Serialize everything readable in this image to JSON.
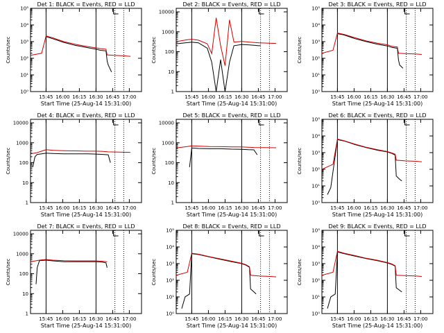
{
  "figure": {
    "colors": {
      "events": "#000000",
      "lld": "#cc0000",
      "axis": "#000000",
      "background": "#ffffff"
    },
    "xticks": [
      "15:45",
      "16:00",
      "16:15",
      "16:30",
      "16:45",
      "17:00"
    ]
  },
  "chart_data": [
    {
      "type": "line",
      "title": "Det 1: BLACK = Events, RED = LLD",
      "xlabel": "Start Time (25-Aug-14 15:31:00)",
      "ylabel": "Counts/sec",
      "yscale": "log",
      "ylim": [
        1,
        100000
      ],
      "yticks": [
        "10⁰",
        "10¹",
        "10²",
        "10³",
        "10⁴",
        "10⁵"
      ],
      "xlim_minutes_after_15_31": [
        0,
        100
      ],
      "vlines_solid_min": [
        14,
        59
      ],
      "vlines_dotted_min": [
        76,
        84
      ],
      "series": [
        {
          "name": "BLACK = Events",
          "x": [
            14,
            20,
            30,
            40,
            50,
            59,
            63,
            68,
            69,
            70,
            73
          ],
          "y": [
            2000,
            1500,
            900,
            600,
            450,
            350,
            300,
            280,
            70,
            40,
            15
          ]
        },
        {
          "name": "RED = LLD",
          "x": [
            0,
            10,
            14,
            20,
            30,
            40,
            50,
            59,
            63,
            68,
            69,
            75,
            85,
            90
          ],
          "y": [
            150,
            200,
            2200,
            1700,
            1000,
            700,
            520,
            420,
            380,
            350,
            160,
            150,
            140,
            130
          ]
        }
      ]
    },
    {
      "type": "line",
      "title": "Det 2: BLACK = Events, RED = LLD",
      "xlabel": "Start Time (25-Aug-14 15:31:00)",
      "ylabel": "Counts/sec",
      "yscale": "log",
      "ylim": [
        1,
        15000
      ],
      "yticks": [
        "1",
        "10",
        "100",
        "1000",
        "10000"
      ],
      "xlim_minutes_after_15_31": [
        0,
        100
      ],
      "vlines_solid_min": [
        14,
        59
      ],
      "vlines_dotted_min": [
        76,
        84
      ],
      "series": [
        {
          "name": "BLACK = Events",
          "x": [
            0,
            14,
            20,
            28,
            32,
            36,
            40,
            44,
            48,
            52,
            59,
            66,
            70,
            74,
            76
          ],
          "y": [
            250,
            300,
            280,
            150,
            30,
            1,
            40,
            1,
            30,
            200,
            230,
            220,
            210,
            200,
            200
          ]
        },
        {
          "name": "RED = LLD",
          "x": [
            0,
            10,
            14,
            20,
            28,
            32,
            36,
            40,
            44,
            48,
            52,
            59,
            66,
            75,
            90
          ],
          "y": [
            320,
            400,
            420,
            380,
            250,
            80,
            5000,
            200,
            20,
            4000,
            300,
            330,
            300,
            280,
            260
          ]
        }
      ]
    },
    {
      "type": "line",
      "title": "Det 3: BLACK = Events, RED = LLD",
      "xlabel": "Start Time (25-Aug-14 15:31:00)",
      "ylabel": "Counts/sec",
      "yscale": "log",
      "ylim": [
        1,
        100000
      ],
      "yticks": [
        "10⁰",
        "10¹",
        "10²",
        "10³",
        "10⁴",
        "10⁵"
      ],
      "xlim_minutes_after_15_31": [
        0,
        100
      ],
      "vlines_solid_min": [
        14,
        59
      ],
      "vlines_dotted_min": [
        76,
        84
      ],
      "series": [
        {
          "name": "BLACK = Events",
          "x": [
            14,
            20,
            30,
            40,
            50,
            59,
            63,
            68,
            69,
            70,
            73
          ],
          "y": [
            3000,
            2500,
            1500,
            1000,
            700,
            550,
            450,
            400,
            80,
            40,
            25
          ]
        },
        {
          "name": "RED = LLD",
          "x": [
            0,
            10,
            14,
            20,
            30,
            40,
            50,
            59,
            63,
            68,
            69,
            75,
            85,
            90
          ],
          "y": [
            200,
            300,
            3300,
            2700,
            1700,
            1100,
            800,
            650,
            520,
            480,
            200,
            190,
            180,
            170
          ]
        }
      ]
    },
    {
      "type": "line",
      "title": "Det 4: BLACK = Events, RED = LLD",
      "xlabel": "Start Time (25-Aug-14 15:31:00)",
      "ylabel": "Counts/sec",
      "yscale": "log",
      "ylim": [
        1,
        15000
      ],
      "yticks": [
        "1",
        "10",
        "100",
        "1000",
        "10000"
      ],
      "xlim_minutes_after_15_31": [
        0,
        100
      ],
      "vlines_solid_min": [
        14,
        59
      ],
      "vlines_dotted_min": [
        76,
        84
      ],
      "series": [
        {
          "name": "BLACK = Events",
          "x": [
            2,
            4,
            6,
            10,
            14,
            20,
            30,
            40,
            50,
            59,
            65,
            70,
            72
          ],
          "y": [
            60,
            200,
            260,
            280,
            300,
            290,
            280,
            280,
            280,
            270,
            260,
            250,
            100
          ]
        },
        {
          "name": "RED = LLD",
          "x": [
            0,
            6,
            10,
            14,
            20,
            30,
            40,
            50,
            59,
            65,
            70,
            80,
            90
          ],
          "y": [
            280,
            320,
            380,
            450,
            420,
            400,
            390,
            380,
            380,
            370,
            350,
            340,
            330
          ]
        }
      ]
    },
    {
      "type": "line",
      "title": "Det 5: BLACK = Events, RED = LLD",
      "xlabel": "Start Time (25-Aug-14 15:31:00)",
      "ylabel": "Counts/sec",
      "yscale": "log",
      "ylim": [
        1,
        15000
      ],
      "yticks": [
        "1",
        "10",
        "100",
        "1000",
        "10000"
      ],
      "xlim_minutes_after_15_31": [
        0,
        100
      ],
      "vlines_solid_min": [
        14,
        59
      ],
      "vlines_dotted_min": [
        76,
        84
      ],
      "series": [
        {
          "name": "BLACK = Events",
          "x": [
            12,
            14,
            20,
            30,
            40,
            50,
            59,
            65,
            70,
            73
          ],
          "y": [
            60,
            550,
            520,
            500,
            500,
            480,
            470,
            450,
            440,
            250
          ]
        },
        {
          "name": "RED = LLD",
          "x": [
            0,
            10,
            14,
            20,
            30,
            40,
            50,
            59,
            65,
            70,
            80,
            90
          ],
          "y": [
            550,
            650,
            700,
            680,
            650,
            640,
            620,
            620,
            600,
            580,
            570,
            560
          ]
        }
      ]
    },
    {
      "type": "line",
      "title": "Det 6: BLACK = Events, RED = LLD",
      "xlabel": "Start Time (25-Aug-14 15:31:00)",
      "ylabel": "Counts/sec",
      "yscale": "log",
      "ylim": [
        1,
        100000
      ],
      "yticks": [
        "10⁰",
        "10¹",
        "10²",
        "10³",
        "10⁴",
        "10⁵"
      ],
      "xlim_minutes_after_15_31": [
        0,
        100
      ],
      "vlines_solid_min": [
        14,
        59
      ],
      "vlines_dotted_min": [
        76,
        84
      ],
      "series": [
        {
          "name": "BLACK = Events",
          "x": [
            5,
            8,
            14,
            20,
            30,
            40,
            50,
            59,
            63,
            66,
            67,
            70,
            72
          ],
          "y": [
            3,
            8,
            6000,
            5000,
            3000,
            2000,
            1400,
            1100,
            900,
            700,
            40,
            25,
            20
          ]
        },
        {
          "name": "RED = LLD",
          "x": [
            0,
            10,
            14,
            20,
            30,
            40,
            50,
            59,
            63,
            66,
            67,
            75,
            85,
            90
          ],
          "y": [
            100,
            200,
            6500,
            5200,
            3200,
            2100,
            1500,
            1150,
            950,
            800,
            350,
            320,
            300,
            280
          ]
        }
      ]
    },
    {
      "type": "line",
      "title": "Det 7: BLACK = Events, RED = LLD",
      "xlabel": "Start Time (25-Aug-14 15:31:00)",
      "ylabel": "Counts/sec",
      "yscale": "log",
      "ylim": [
        1,
        15000
      ],
      "yticks": [
        "1",
        "10",
        "100",
        "1000",
        "10000"
      ],
      "xlim_minutes_after_15_31": [
        0,
        100
      ],
      "vlines_solid_min": [
        14,
        59
      ],
      "vlines_dotted_min": [
        76,
        84
      ],
      "series": [
        {
          "name": "BLACK = Events",
          "x": [
            5,
            6,
            8,
            14,
            20,
            30,
            40,
            50,
            59,
            65,
            68,
            69
          ],
          "y": [
            30,
            200,
            450,
            480,
            440,
            400,
            400,
            400,
            400,
            380,
            350,
            200
          ]
        },
        {
          "name": "RED = LLD",
          "x": [
            0,
            8,
            14,
            20,
            30,
            40,
            50,
            59,
            65,
            69
          ],
          "y": [
            400,
            480,
            520,
            480,
            450,
            440,
            440,
            440,
            420,
            400
          ]
        }
      ]
    },
    {
      "type": "line",
      "title": "Det 8: BLACK = Events, RED = LLD",
      "xlabel": "Start Time (25-Aug-14 15:31:00)",
      "ylabel": "Counts/sec",
      "yscale": "log",
      "ylim": [
        1,
        100000
      ],
      "yticks": [
        "10⁰",
        "10¹",
        "10²",
        "10³",
        "10⁴",
        "10⁵"
      ],
      "xlim_minutes_after_15_31": [
        0,
        100
      ],
      "vlines_solid_min": [
        14,
        59
      ],
      "vlines_dotted_min": [
        76,
        84
      ],
      "series": [
        {
          "name": "BLACK = Events",
          "x": [
            5,
            8,
            12,
            14,
            20,
            30,
            40,
            50,
            59,
            63,
            66,
            67,
            70,
            72
          ],
          "y": [
            2,
            10,
            15,
            4000,
            3500,
            2500,
            1800,
            1300,
            1000,
            800,
            600,
            30,
            20,
            15
          ]
        },
        {
          "name": "RED = LLD",
          "x": [
            0,
            10,
            14,
            20,
            30,
            40,
            50,
            59,
            63,
            66,
            67,
            75,
            85,
            90
          ],
          "y": [
            200,
            300,
            4200,
            3700,
            2600,
            1900,
            1400,
            1050,
            850,
            650,
            200,
            180,
            170,
            160
          ]
        }
      ]
    },
    {
      "type": "line",
      "title": "Det 9: BLACK = Events, RED = LLD",
      "xlabel": "Start Time (25-Aug-14 15:31:00)",
      "ylabel": "Counts/sec",
      "yscale": "log",
      "ylim": [
        1,
        100000
      ],
      "yticks": [
        "10⁰",
        "10¹",
        "10²",
        "10³",
        "10⁴",
        "10⁵"
      ],
      "xlim_minutes_after_15_31": [
        0,
        100
      ],
      "vlines_solid_min": [
        14,
        59
      ],
      "vlines_dotted_min": [
        76,
        84
      ],
      "series": [
        {
          "name": "BLACK = Events",
          "x": [
            5,
            8,
            12,
            14,
            20,
            30,
            40,
            50,
            59,
            63,
            66,
            67,
            70,
            72
          ],
          "y": [
            2,
            10,
            15,
            5000,
            4000,
            2800,
            2000,
            1500,
            1100,
            900,
            700,
            35,
            25,
            20
          ]
        },
        {
          "name": "RED = LLD",
          "x": [
            0,
            10,
            14,
            20,
            30,
            40,
            50,
            59,
            63,
            66,
            67,
            75,
            85,
            90
          ],
          "y": [
            200,
            300,
            5500,
            4200,
            3000,
            2100,
            1600,
            1150,
            950,
            750,
            200,
            190,
            180,
            170
          ]
        }
      ]
    }
  ]
}
